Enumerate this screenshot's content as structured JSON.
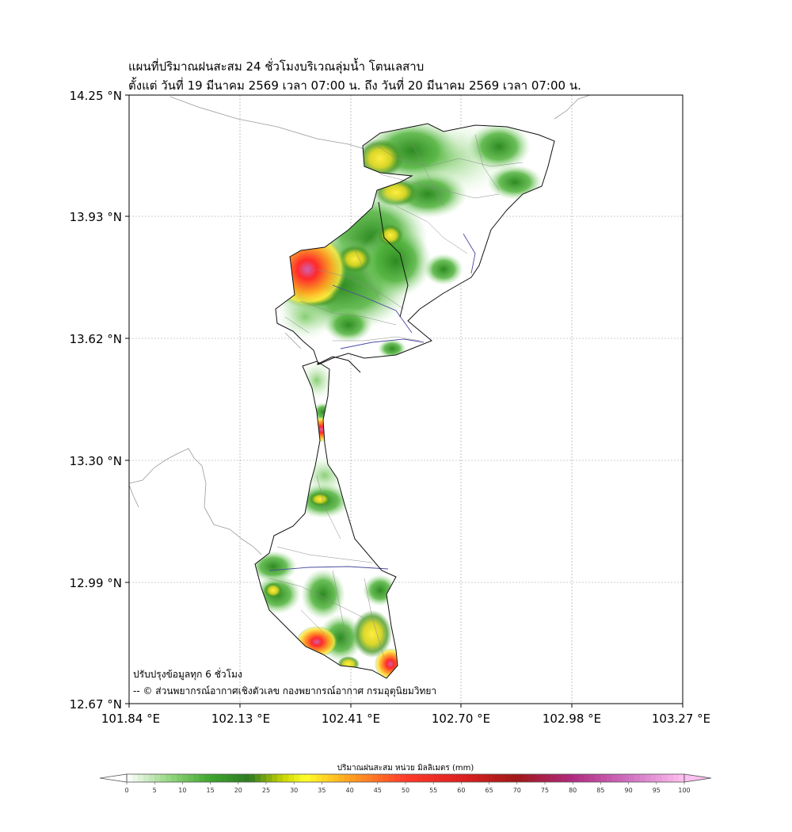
{
  "title": {
    "line1": "แผนที่ปริมาณฝนสะสม 24 ชั่วโมงบริเวณลุ่มน้ำ โตนเลสาบ",
    "line2": "ตั้งแต่ วันที่ 19 มีนาคม 2569 เวลา 07:00 น. ถึง วันที่ 20 มีนาคม 2569 เวลา 07:00 น."
  },
  "map": {
    "lat_labels": [
      "14.25 °N",
      "13.93 °N",
      "13.62 °N",
      "13.30 °N",
      "12.99 °N",
      "12.67 °N"
    ],
    "lon_labels": [
      "101.84 °E",
      "102.13 °E",
      "102.41 °E",
      "102.70 °E",
      "102.98 °E",
      "103.27 °E"
    ],
    "update_note": "ปรับปรุงข้อมูลทุก 6 ชั่วโมง",
    "credit": "-- © ส่วนพยากรณ์อากาศเชิงตัวเลข กองพยากรณ์อากาศ กรมอุตุนิยมวิทยา"
  },
  "colorbar": {
    "title": "ปริมาณฝนสะสม หน่วย มิลลิเมตร (mm)",
    "ticks": [
      "0",
      "5",
      "10",
      "15",
      "20",
      "25",
      "30",
      "35",
      "40",
      "45",
      "50",
      "55",
      "60",
      "65",
      "70",
      "75",
      "80",
      "85",
      "90",
      "95",
      "100"
    ],
    "stops": [
      {
        "v": 0,
        "c": "#ffffff"
      },
      {
        "v": 8,
        "c": "#8fd47a"
      },
      {
        "v": 15,
        "c": "#3ea52e"
      },
      {
        "v": 22,
        "c": "#2e7a22"
      },
      {
        "v": 28,
        "c": "#c8d400"
      },
      {
        "v": 32,
        "c": "#ffff2a"
      },
      {
        "v": 40,
        "c": "#ffa020"
      },
      {
        "v": 50,
        "c": "#ff3b2b"
      },
      {
        "v": 60,
        "c": "#dd2020"
      },
      {
        "v": 70,
        "c": "#a01818"
      },
      {
        "v": 80,
        "c": "#b02a80"
      },
      {
        "v": 90,
        "c": "#d070c0"
      },
      {
        "v": 100,
        "c": "#ffc0f0"
      }
    ]
  }
}
